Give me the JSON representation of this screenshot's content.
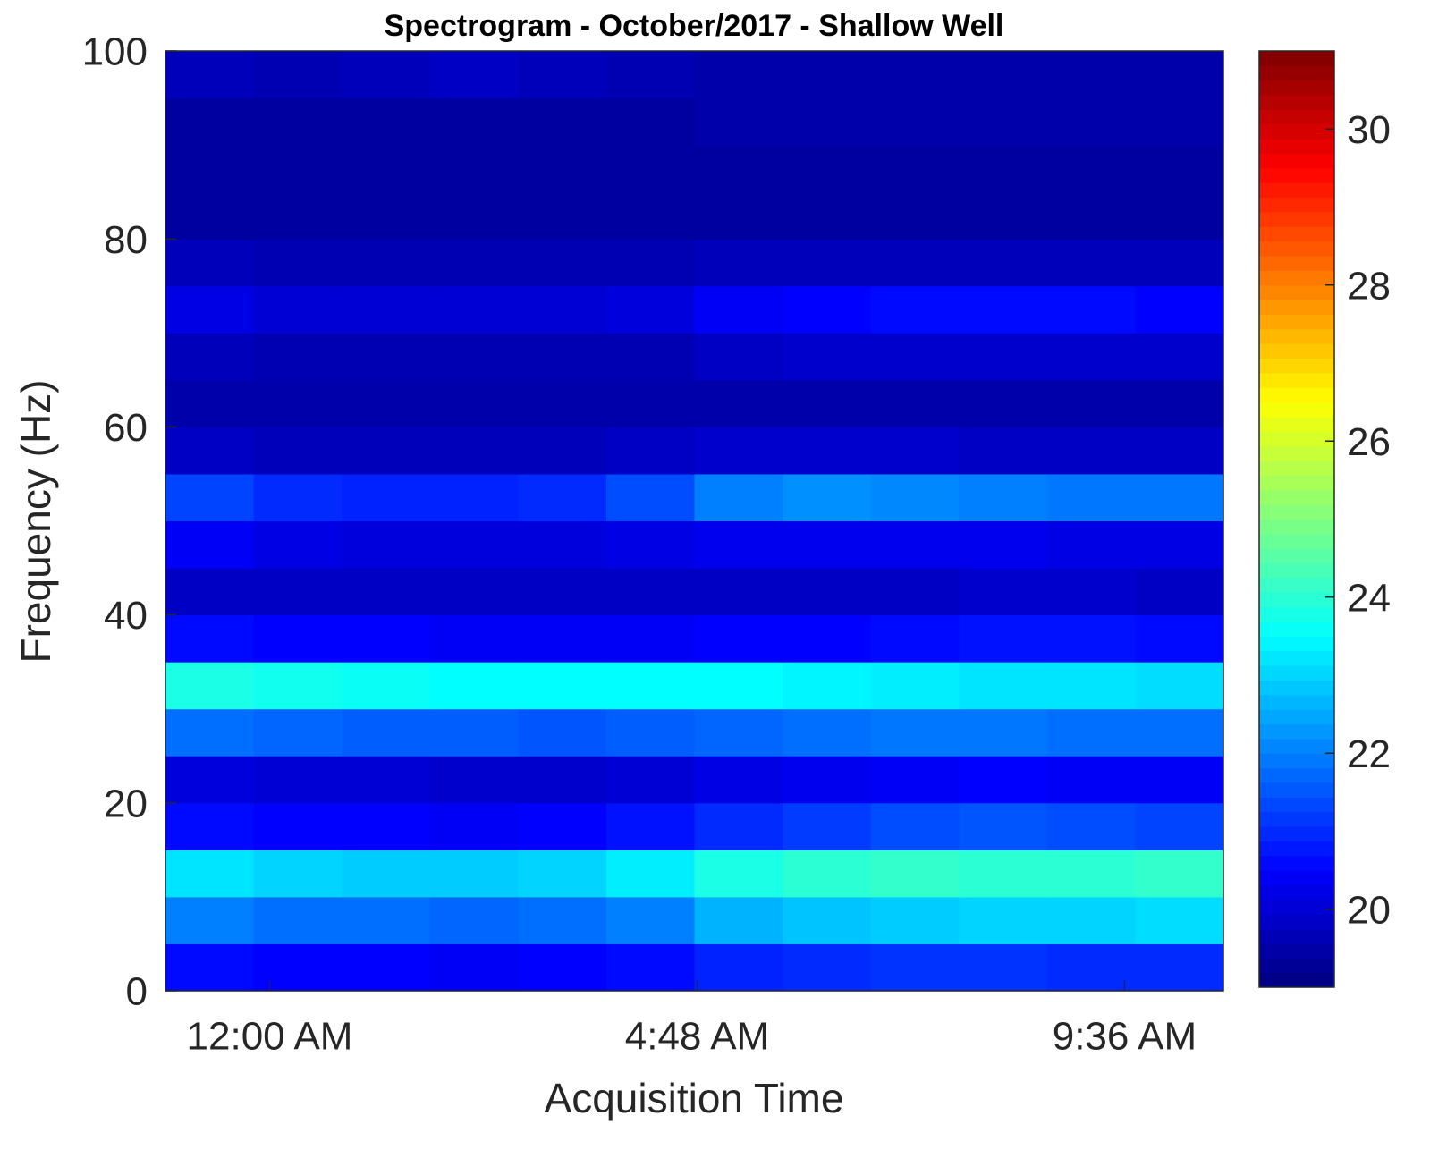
{
  "chart_data": {
    "type": "heatmap",
    "title": "Spectrogram - October/2017 - Shallow Well",
    "x_label": "Acquisition Time",
    "y_label": "Frequency (Hz)",
    "colormap": "jet",
    "x": [
      -1.17,
      -0.18,
      0.81,
      1.8,
      2.79,
      3.78,
      4.77,
      5.76,
      6.75,
      7.74,
      8.73,
      9.72,
      10.71
    ],
    "y": [
      0,
      5,
      10,
      15,
      20,
      25,
      30,
      35,
      40,
      45,
      50,
      55,
      60,
      65,
      70,
      75,
      80,
      85,
      90,
      95,
      100
    ],
    "values": [
      [
        20.6,
        20.5,
        20.5,
        20.4,
        20.5,
        20.6,
        20.9,
        21.0,
        21.1,
        21.1,
        21.0,
        21.0
      ],
      [
        22.0,
        21.8,
        21.8,
        21.7,
        21.8,
        22.0,
        22.6,
        22.8,
        22.9,
        23.0,
        23.0,
        23.1
      ],
      [
        23.2,
        23.0,
        22.9,
        22.9,
        23.0,
        23.3,
        23.8,
        24.0,
        24.1,
        24.0,
        24.0,
        24.1
      ],
      [
        20.6,
        20.5,
        20.5,
        20.4,
        20.5,
        20.7,
        21.0,
        21.2,
        21.4,
        21.5,
        21.4,
        21.3
      ],
      [
        20.1,
        20.0,
        20.0,
        19.9,
        19.9,
        20.0,
        20.2,
        20.3,
        20.4,
        20.5,
        20.4,
        20.4
      ],
      [
        21.8,
        21.7,
        21.6,
        21.6,
        21.5,
        21.6,
        21.7,
        21.8,
        21.9,
        21.9,
        21.8,
        21.8
      ],
      [
        23.8,
        23.7,
        23.6,
        23.5,
        23.5,
        23.5,
        23.5,
        23.4,
        23.3,
        23.2,
        23.2,
        23.1
      ],
      [
        20.6,
        20.5,
        20.5,
        20.4,
        20.4,
        20.4,
        20.5,
        20.5,
        20.6,
        20.7,
        20.7,
        20.6
      ],
      [
        19.8,
        19.8,
        19.8,
        19.8,
        19.8,
        19.8,
        19.8,
        19.8,
        19.8,
        19.9,
        19.9,
        19.8
      ],
      [
        20.4,
        20.2,
        20.1,
        20.1,
        20.1,
        20.2,
        20.3,
        20.3,
        20.3,
        20.3,
        20.2,
        20.2
      ],
      [
        21.3,
        21.0,
        20.9,
        20.9,
        21.0,
        21.4,
        22.0,
        22.2,
        22.1,
        22.0,
        21.9,
        21.9
      ],
      [
        19.8,
        19.7,
        19.7,
        19.7,
        19.7,
        19.8,
        19.9,
        19.9,
        19.9,
        19.8,
        19.8,
        19.8
      ],
      [
        19.5,
        19.5,
        19.5,
        19.5,
        19.5,
        19.5,
        19.5,
        19.5,
        19.5,
        19.5,
        19.5,
        19.5
      ],
      [
        19.7,
        19.6,
        19.6,
        19.6,
        19.6,
        19.6,
        19.8,
        19.9,
        19.9,
        19.9,
        19.9,
        19.9
      ],
      [
        20.2,
        20.0,
        20.0,
        20.0,
        20.0,
        20.1,
        20.4,
        20.5,
        20.6,
        20.6,
        20.6,
        20.5
      ],
      [
        19.7,
        19.6,
        19.6,
        19.6,
        19.6,
        19.6,
        19.7,
        19.7,
        19.7,
        19.7,
        19.7,
        19.7
      ],
      [
        19.4,
        19.4,
        19.4,
        19.4,
        19.4,
        19.4,
        19.4,
        19.4,
        19.4,
        19.4,
        19.4,
        19.4
      ],
      [
        19.4,
        19.4,
        19.4,
        19.4,
        19.4,
        19.4,
        19.4,
        19.4,
        19.4,
        19.4,
        19.4,
        19.4
      ],
      [
        19.4,
        19.4,
        19.4,
        19.4,
        19.4,
        19.4,
        19.5,
        19.5,
        19.5,
        19.5,
        19.5,
        19.5
      ],
      [
        19.7,
        19.6,
        19.7,
        19.8,
        19.7,
        19.6,
        19.5,
        19.5,
        19.5,
        19.5,
        19.5,
        19.5
      ]
    ],
    "xlim": [
      -1.17,
      10.71
    ],
    "xticks": [
      {
        "value": 0,
        "label": "12:00 AM"
      },
      {
        "value": 4.8,
        "label": "4:48 AM"
      },
      {
        "value": 9.6,
        "label": "9:36 AM"
      }
    ],
    "ylim": [
      0,
      100
    ],
    "yticks": [
      0,
      20,
      40,
      60,
      80,
      100
    ],
    "clim": [
      19,
      31
    ],
    "cticks": [
      20,
      22,
      24,
      26,
      28,
      30
    ]
  }
}
